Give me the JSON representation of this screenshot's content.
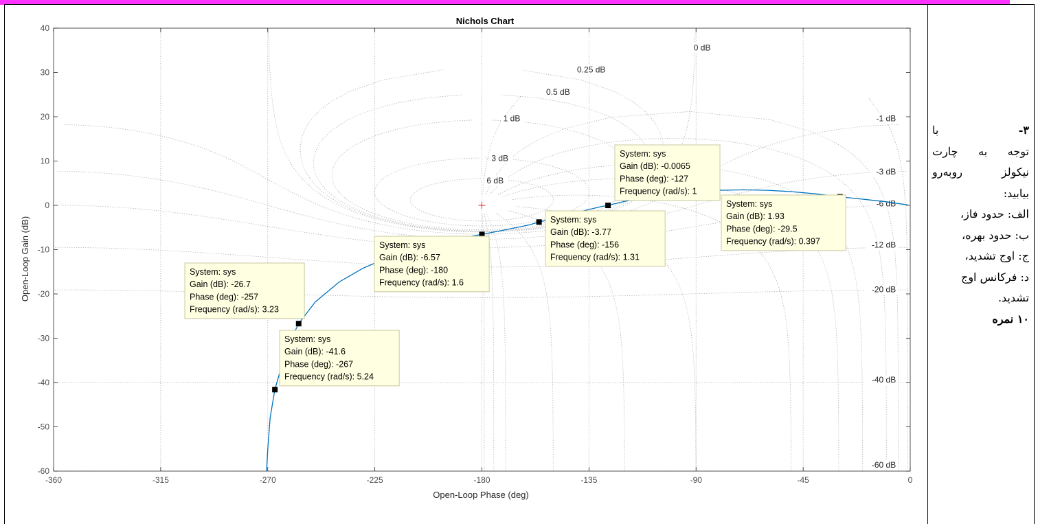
{
  "side_text": {
    "number": "۳-",
    "lines": [
      "با",
      "توجه به چارت",
      "نیکولز روبه‌رو",
      "بیابید:",
      "الف: حدود فاز،",
      "ب: حدود بهره،",
      "ج: اوج تشدید،",
      "د: فرکانس اوج",
      "تشدید."
    ],
    "score": "۱۰ نمره"
  },
  "colors": {
    "curve": "#0072bd",
    "tip_bg": "#ffffe1",
    "tip_border": "#c8c8a0",
    "grid": "#a6a6a6",
    "banner": "#ff33ff"
  },
  "chart_data": {
    "type": "line",
    "title": "Nichols Chart",
    "xlabel": "Open-Loop Phase (deg)",
    "ylabel": "Open-Loop Gain (dB)",
    "xlim": [
      -360,
      0
    ],
    "ylim": [
      -60,
      40
    ],
    "xticks": [
      -360,
      -315,
      -270,
      -225,
      -180,
      -135,
      -90,
      -45,
      0
    ],
    "yticks": [
      40,
      30,
      20,
      10,
      0,
      -10,
      -20,
      -30,
      -40,
      -50,
      -60
    ],
    "grid": "nichols",
    "m_contour_labels": [
      {
        "text": "0 dB",
        "phase": -91,
        "gain": 35
      },
      {
        "text": "0.25 dB",
        "phase": -140,
        "gain": 30
      },
      {
        "text": "0.5 dB",
        "phase": -153,
        "gain": 25
      },
      {
        "text": "1 dB",
        "phase": -171,
        "gain": 19
      },
      {
        "text": "-1 dB",
        "phase": -6,
        "gain": 19
      },
      {
        "text": "3 dB",
        "phase": -176,
        "gain": 10
      },
      {
        "text": "-3 dB",
        "phase": -6,
        "gain": 7
      },
      {
        "text": "6 dB",
        "phase": -178,
        "gain": 5
      },
      {
        "text": "-6 dB",
        "phase": -6,
        "gain": -0.2
      },
      {
        "text": "-12 dB",
        "phase": -6,
        "gain": -9.5
      },
      {
        "text": "-20 dB",
        "phase": -6,
        "gain": -19.6
      },
      {
        "text": "-40 dB",
        "phase": -6,
        "gain": -40
      },
      {
        "text": "-60 dB",
        "phase": -6,
        "gain": -59.2
      }
    ],
    "series": [
      {
        "phase": [
          -270.5,
          -270,
          -269,
          -267,
          -264,
          -261,
          -257,
          -250,
          -240,
          -230,
          -220,
          -210,
          -200,
          -190,
          -180,
          -170,
          -160,
          -156,
          -150,
          -140,
          -130,
          -127,
          -120,
          -110,
          -100,
          -90,
          -80,
          -70,
          -60,
          -50,
          -40,
          -35,
          -29.5,
          -20,
          -10,
          -1
        ],
        "gain": [
          -60,
          -55,
          -48,
          -41.6,
          -36,
          -31,
          -26.7,
          -21.8,
          -17.3,
          -14.2,
          -11.9,
          -10.1,
          -8.7,
          -7.5,
          -6.57,
          -5.5,
          -4.4,
          -3.77,
          -3.0,
          -1.6,
          -0.3,
          -0.0065,
          0.9,
          2.0,
          2.7,
          3.2,
          3.4,
          3.5,
          3.4,
          3.1,
          2.6,
          2.3,
          1.93,
          1.4,
          0.8,
          0.1
        ]
      }
    ],
    "markers": [
      {
        "phase": -267,
        "gain": -41.6
      },
      {
        "phase": -257,
        "gain": -26.7
      },
      {
        "phase": -180,
        "gain": -6.57
      },
      {
        "phase": -156,
        "gain": -3.77
      },
      {
        "phase": -127,
        "gain": -0.0065
      },
      {
        "phase": -29.5,
        "gain": 1.93
      }
    ],
    "data_tips": [
      {
        "anchor": [
          -257,
          -26.7
        ],
        "lines": [
          "System: sys",
          "Gain (dB): -26.7",
          "Phase (deg): -257",
          "Frequency (rad/s): 3.23"
        ]
      },
      {
        "anchor": [
          -267,
          -41.6
        ],
        "lines": [
          "System: sys",
          "Gain (dB): -41.6",
          "Phase (deg): -267",
          "Frequency (rad/s): 5.24"
        ]
      },
      {
        "anchor": [
          -180,
          -6.57
        ],
        "lines": [
          "System: sys",
          "Gain (dB): -6.57",
          "Phase (deg): -180",
          "Frequency (rad/s): 1.6"
        ]
      },
      {
        "anchor": [
          -156,
          -3.77
        ],
        "lines": [
          "System: sys",
          "Gain (dB): -3.77",
          "Phase (deg): -156",
          "Frequency (rad/s): 1.31"
        ]
      },
      {
        "anchor": [
          -127,
          -0.0065
        ],
        "lines": [
          "System: sys",
          "Gain (dB): -0.0065",
          "Phase (deg): -127",
          "Frequency (rad/s): 1"
        ]
      },
      {
        "anchor": [
          -29.5,
          1.93
        ],
        "lines": [
          "System: sys",
          "Gain (dB): 1.93",
          "Phase (deg): -29.5",
          "Frequency (rad/s): 0.397"
        ]
      }
    ]
  }
}
